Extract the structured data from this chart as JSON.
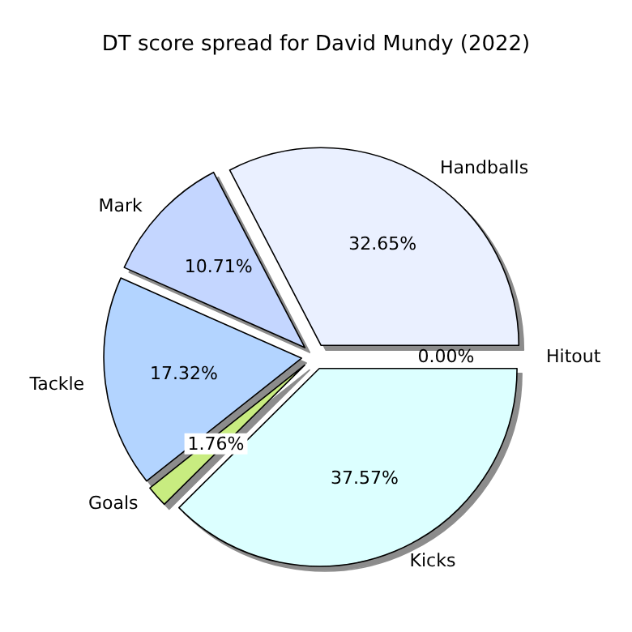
{
  "chart_data": {
    "type": "pie",
    "title": "DT score spread for David Mundy (2022)",
    "categories": [
      "Handballs",
      "Mark",
      "Tackle",
      "Goals",
      "Kicks",
      "Hitout"
    ],
    "values": [
      32.65,
      10.71,
      17.32,
      1.76,
      37.57,
      0.0
    ],
    "value_labels": [
      "32.65%",
      "10.71%",
      "17.32%",
      "1.76%",
      "37.57%",
      "0.00%"
    ],
    "colors": [
      "#eaf0ff",
      "#c4d6ff",
      "#b3d4ff",
      "#c8ec80",
      "#dcffff",
      "#e8ffe8"
    ],
    "legend": false
  }
}
